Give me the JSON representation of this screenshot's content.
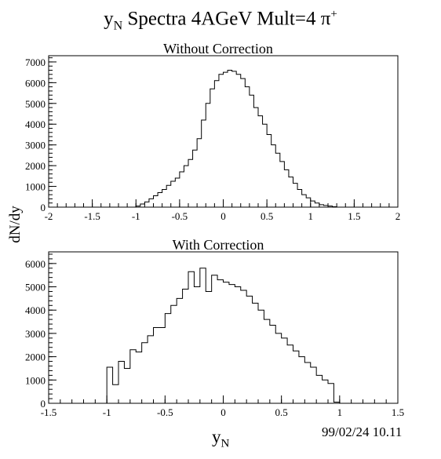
{
  "figure": {
    "title_base": "y",
    "title_sub": "N",
    "title_rest": " Spectra 4AGeV Mult=4 π",
    "title_sup": "+",
    "ylabel": "dN/dy",
    "xlabel_base": "y",
    "xlabel_sub": "N",
    "datestamp": "99/02/24   10.11"
  },
  "chart_data": [
    {
      "type": "histogram",
      "title": "Without Correction",
      "xlim": [
        -2,
        2
      ],
      "ylim": [
        0,
        7300
      ],
      "xticks": [
        -2,
        -1.5,
        -1,
        -0.5,
        0,
        0.5,
        1,
        1.5,
        2
      ],
      "xtick_labels": [
        "-2",
        "-1.5",
        "-1",
        "-0.5",
        "0",
        "0.5",
        "1",
        "1.5",
        "2"
      ],
      "yticks": [
        0,
        1000,
        2000,
        3000,
        4000,
        5000,
        6000,
        7000
      ],
      "ytick_labels": [
        "0",
        "1000",
        "2000",
        "3000",
        "4000",
        "5000",
        "6000",
        "7000"
      ],
      "bin_width": 0.05,
      "bin_start": -1.0,
      "values": [
        50,
        150,
        250,
        400,
        550,
        700,
        850,
        1050,
        1250,
        1400,
        1700,
        2000,
        2300,
        2750,
        3300,
        4200,
        5000,
        5700,
        6100,
        6400,
        6500,
        6600,
        6550,
        6400,
        6200,
        5800,
        5400,
        4800,
        4400,
        4000,
        3500,
        3000,
        2600,
        2200,
        1800,
        1450,
        1150,
        850,
        600,
        450,
        300,
        200,
        120,
        80,
        50,
        20
      ]
    },
    {
      "type": "histogram",
      "title": "With Correction",
      "xlim": [
        -1.5,
        1.5
      ],
      "ylim": [
        0,
        6500
      ],
      "xticks": [
        -1.5,
        -1,
        -0.5,
        0,
        0.5,
        1,
        1.5
      ],
      "xtick_labels": [
        "-1.5",
        "-1",
        "-0.5",
        "0",
        "0.5",
        "1",
        "1.5"
      ],
      "yticks": [
        0,
        1000,
        2000,
        3000,
        4000,
        5000,
        6000
      ],
      "ytick_labels": [
        "0",
        "1000",
        "2000",
        "3000",
        "4000",
        "5000",
        "6000"
      ],
      "bin_width": 0.05,
      "bin_start": -1.0,
      "values": [
        1550,
        800,
        1800,
        1500,
        2300,
        2200,
        2600,
        2900,
        3250,
        3250,
        3850,
        4200,
        4500,
        4900,
        5650,
        5000,
        5800,
        4800,
        5500,
        5300,
        5200,
        5100,
        5000,
        4850,
        4600,
        4300,
        4000,
        3600,
        3350,
        3000,
        2800,
        2500,
        2250,
        2000,
        1750,
        1550,
        1200,
        1000,
        850,
        50
      ]
    }
  ]
}
